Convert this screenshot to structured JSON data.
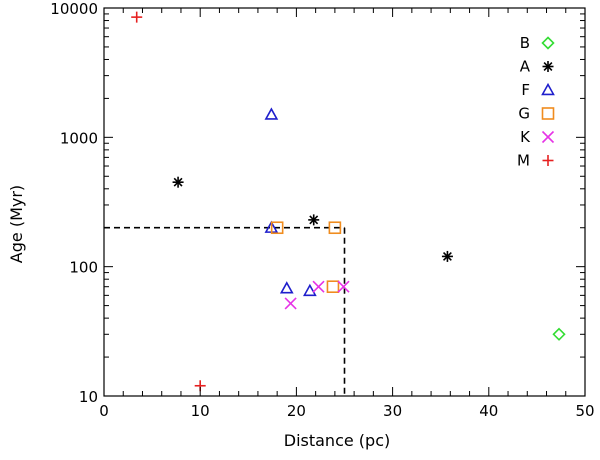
{
  "chart_data": {
    "type": "scatter",
    "title": "",
    "xlabel": "Distance (pc)",
    "ylabel": "Age (Myr)",
    "xlim": [
      0,
      50
    ],
    "ylim": [
      10,
      10000
    ],
    "yscale": "log",
    "x_ticks": [
      0,
      10,
      20,
      30,
      40,
      50
    ],
    "x_tick_labels": [
      "0",
      "10",
      "20",
      "30",
      "40",
      "50"
    ],
    "y_ticks": [
      10,
      100,
      1000,
      10000
    ],
    "y_tick_labels": [
      "10",
      "100",
      "1000",
      "10000"
    ],
    "legend_position": "top-right",
    "series": [
      {
        "name": "B",
        "marker": "diamond",
        "color": "#33dd33",
        "points": [
          [
            47.3,
            30
          ]
        ]
      },
      {
        "name": "A",
        "marker": "asterisk",
        "color": "#000000",
        "points": [
          [
            7.7,
            450
          ],
          [
            21.8,
            230
          ],
          [
            35.7,
            120
          ]
        ]
      },
      {
        "name": "F",
        "marker": "triangle",
        "color": "#1f1fcc",
        "points": [
          [
            17.4,
            1500
          ],
          [
            17.4,
            200
          ],
          [
            19.0,
            68
          ],
          [
            21.4,
            65
          ]
        ]
      },
      {
        "name": "G",
        "marker": "square",
        "color": "#f08c1e",
        "points": [
          [
            18.0,
            200
          ],
          [
            24.0,
            200
          ],
          [
            23.8,
            70
          ]
        ]
      },
      {
        "name": "K",
        "marker": "cross",
        "color": "#e633e6",
        "points": [
          [
            19.4,
            52
          ],
          [
            22.3,
            70
          ],
          [
            24.9,
            70
          ]
        ]
      },
      {
        "name": "M",
        "marker": "plus",
        "color": "#e62020",
        "points": [
          [
            3.4,
            8500
          ],
          [
            10.0,
            12
          ]
        ]
      }
    ],
    "reference_lines": [
      {
        "style": "dashed",
        "from": [
          0,
          200
        ],
        "to": [
          25,
          200
        ]
      },
      {
        "style": "dashed",
        "from": [
          25,
          200
        ],
        "to": [
          25,
          10
        ]
      }
    ]
  }
}
